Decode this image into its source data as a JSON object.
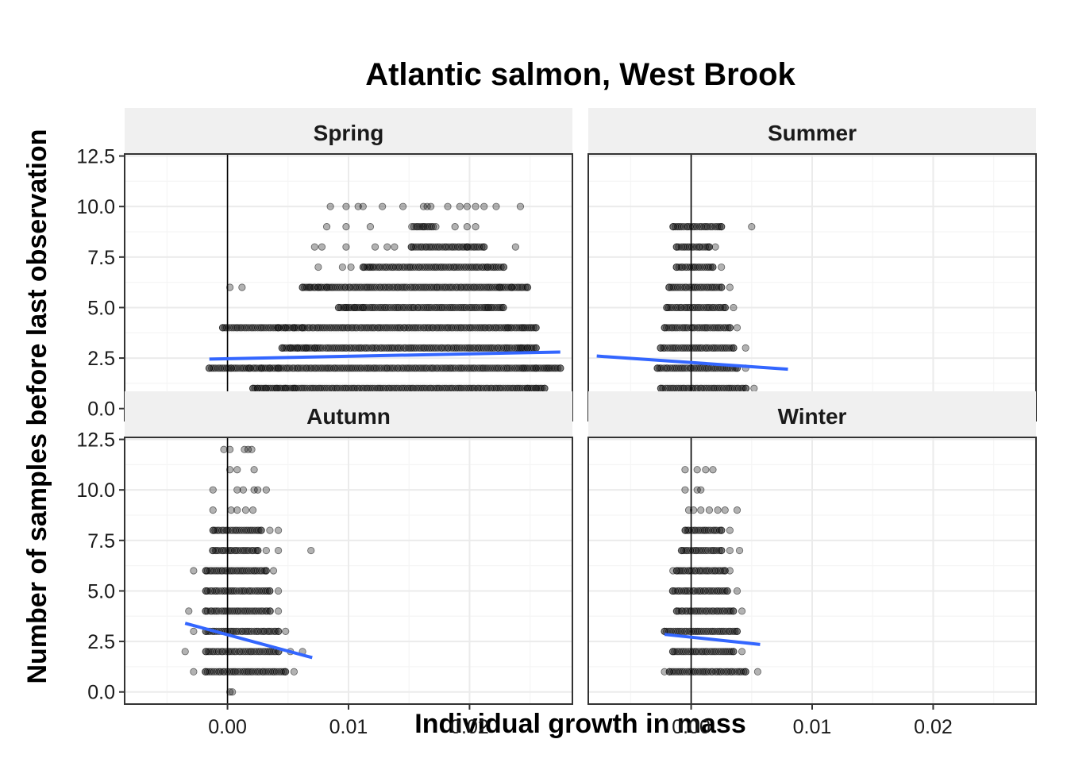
{
  "chart_data": {
    "type": "scatter",
    "title": "Atlantic salmon, West Brook",
    "xlabel": "Individual growth in mass",
    "ylabel": "Number of samples before last observation",
    "xlim": [
      -0.0085,
      0.0285
    ],
    "ylim": [
      -0.6,
      12.6
    ],
    "x_ticks": [
      0.0,
      0.01,
      0.02
    ],
    "x_tick_labels": [
      "0.00",
      "0.01",
      "0.02"
    ],
    "y_ticks": [
      0,
      2.5,
      5,
      7.5,
      10,
      12.5
    ],
    "y_tick_labels": [
      "0.0",
      "2.5",
      "5.0",
      "7.5",
      "10.0",
      "12.5"
    ],
    "vline_x": 0,
    "grid": true,
    "point_color": "#000000",
    "point_alpha": 0.3,
    "trend_color": "#3366FF",
    "facets": [
      {
        "name": "Spring",
        "rows": [
          {
            "y": 0,
            "x": [
              0.0002
            ]
          },
          {
            "y": 1,
            "min": 0.0021,
            "max": 0.0262,
            "x": [
              0.0021,
              0.0025,
              0.0032,
              0.0041,
              0.0048,
              0.0055,
              0.0248,
              0.0255,
              0.0262
            ]
          },
          {
            "y": 2,
            "min": -0.0015,
            "max": 0.0275,
            "x": [
              -0.0015,
              0.0003,
              0.0018,
              0.0028,
              0.0035,
              0.0042,
              0.0245,
              0.0255,
              0.0265,
              0.0275
            ]
          },
          {
            "y": 3,
            "min": 0.0045,
            "max": 0.0255,
            "x": [
              0.0045,
              0.0052,
              0.0058,
              0.0065,
              0.0072,
              0.0242,
              0.0248,
              0.0255
            ]
          },
          {
            "y": 4,
            "min": -0.0004,
            "max": 0.0255,
            "x": [
              -0.0004,
              0.0042,
              0.0048,
              0.0055,
              0.0062,
              0.0232,
              0.0245,
              0.0255
            ]
          },
          {
            "y": 5,
            "min": 0.0092,
            "max": 0.0228,
            "x": [
              0.0092,
              0.0098,
              0.0105,
              0.0112,
              0.0215,
              0.0228
            ]
          },
          {
            "y": 6,
            "min": 0.0062,
            "max": 0.0248,
            "x": [
              0.0002,
              0.0012,
              0.0062,
              0.0068,
              0.0075,
              0.0082,
              0.0225,
              0.0235,
              0.0248
            ]
          },
          {
            "y": 7,
            "min": 0.0112,
            "max": 0.0228,
            "x": [
              0.0075,
              0.0095,
              0.0102,
              0.0112,
              0.0118,
              0.0215,
              0.0228
            ]
          },
          {
            "y": 8,
            "min": 0.0152,
            "max": 0.0212,
            "x": [
              0.0072,
              0.0078,
              0.0098,
              0.0122,
              0.0132,
              0.0138,
              0.0152,
              0.0198,
              0.0212,
              0.0238
            ]
          },
          {
            "y": 9,
            "min": 0.0152,
            "max": 0.0172,
            "x": [
              0.0082,
              0.0098,
              0.0118,
              0.0162,
              0.0188,
              0.0198,
              0.0205
            ]
          },
          {
            "y": 10,
            "x": [
              0.0085,
              0.0098,
              0.0108,
              0.0112,
              0.0128,
              0.0145,
              0.0162,
              0.0165,
              0.0168,
              0.0182,
              0.0192,
              0.0198,
              0.0205,
              0.0212,
              0.0222,
              0.0242
            ]
          }
        ],
        "trend": {
          "x": [
            -0.0015,
            0.0275
          ],
          "y": [
            2.45,
            2.8
          ]
        }
      },
      {
        "name": "Summer",
        "rows": [
          {
            "y": 0,
            "min": -0.003,
            "max": 0.0048,
            "x": [
              -0.0078,
              -0.0052,
              -0.003,
              -0.0025,
              0.0035,
              0.0042,
              0.0048,
              0.0058,
              0.0082
            ]
          },
          {
            "y": 1,
            "min": -0.0025,
            "max": 0.0045,
            "x": [
              -0.0025,
              0.0045,
              0.0052
            ]
          },
          {
            "y": 2,
            "min": -0.0028,
            "max": 0.0038,
            "x": [
              -0.0028,
              0.0038,
              0.0045
            ]
          },
          {
            "y": 3,
            "min": -0.0025,
            "max": 0.0035,
            "x": [
              -0.0025,
              0.0035,
              0.0045
            ]
          },
          {
            "y": 4,
            "min": -0.0022,
            "max": 0.0032,
            "x": [
              -0.0022,
              0.0032,
              0.0038
            ]
          },
          {
            "y": 5,
            "min": -0.002,
            "max": 0.0028,
            "x": [
              -0.002,
              0.0028,
              0.0035
            ]
          },
          {
            "y": 6,
            "min": -0.0018,
            "max": 0.0025,
            "x": [
              -0.0018,
              0.0025,
              0.0032
            ]
          },
          {
            "y": 7,
            "min": -0.0012,
            "max": 0.0018,
            "x": [
              -0.0012,
              0.0018,
              0.0025
            ]
          },
          {
            "y": 8,
            "min": -0.0012,
            "max": 0.0015,
            "x": [
              -0.0012,
              0.0015,
              0.002
            ]
          },
          {
            "y": 9,
            "min": -0.0015,
            "max": 0.0025,
            "x": [
              -0.0015,
              0.0025,
              0.005
            ]
          }
        ],
        "trend": {
          "x": [
            -0.0078,
            0.008
          ],
          "y": [
            2.6,
            1.95
          ]
        }
      },
      {
        "name": "Autumn",
        "rows": [
          {
            "y": 0,
            "x": [
              0.0002,
              0.0004
            ]
          },
          {
            "y": 1,
            "min": -0.0018,
            "max": 0.0048,
            "x": [
              -0.0028,
              -0.0018,
              0.0048,
              0.0055
            ]
          },
          {
            "y": 2,
            "min": -0.0018,
            "max": 0.0042,
            "x": [
              -0.0035,
              -0.0018,
              0.0042,
              0.0052,
              0.0062
            ]
          },
          {
            "y": 3,
            "min": -0.0018,
            "max": 0.0042,
            "x": [
              -0.0028,
              -0.0018,
              0.0042,
              0.0048
            ]
          },
          {
            "y": 4,
            "min": -0.0018,
            "max": 0.0035,
            "x": [
              -0.0032,
              -0.0018,
              0.0035,
              0.0042
            ]
          },
          {
            "y": 5,
            "min": -0.0018,
            "max": 0.0035,
            "x": [
              -0.0018,
              0.0035,
              0.0042
            ]
          },
          {
            "y": 6,
            "min": -0.0018,
            "max": 0.0032,
            "x": [
              -0.0028,
              -0.0018,
              0.0032,
              0.0038
            ]
          },
          {
            "y": 7,
            "min": -0.0012,
            "max": 0.0025,
            "x": [
              -0.0012,
              0.0025,
              0.0032,
              0.0042,
              0.0069
            ]
          },
          {
            "y": 8,
            "min": -0.0012,
            "max": 0.0028,
            "x": [
              -0.0012,
              0.0028,
              0.0035,
              0.0042
            ]
          },
          {
            "y": 9,
            "x": [
              -0.0012,
              0.0003,
              0.0008,
              0.0015,
              0.0021
            ]
          },
          {
            "y": 10,
            "x": [
              -0.0012,
              0.0008,
              0.0013,
              0.0022,
              0.0025,
              0.0032
            ]
          },
          {
            "y": 11,
            "x": [
              0.0002,
              0.0008,
              0.0022
            ]
          },
          {
            "y": 12,
            "x": [
              -0.0003,
              0.0002,
              0.0014,
              0.0017,
              0.002
            ]
          }
        ],
        "trend": {
          "x": [
            -0.0035,
            0.007
          ],
          "y": [
            3.4,
            1.7
          ]
        }
      },
      {
        "name": "Winter",
        "rows": [
          {
            "y": 1,
            "min": -0.0018,
            "max": 0.0045,
            "x": [
              -0.0022,
              -0.0018,
              0.0045,
              0.0055
            ]
          },
          {
            "y": 2,
            "min": -0.0015,
            "max": 0.0035,
            "x": [
              -0.0015,
              0.0035,
              0.0042
            ]
          },
          {
            "y": 3,
            "min": -0.0022,
            "max": 0.0038,
            "x": [
              -0.0022,
              0.0038
            ]
          },
          {
            "y": 4,
            "min": -0.0012,
            "max": 0.0035,
            "x": [
              -0.0012,
              0.0035,
              0.0042
            ]
          },
          {
            "y": 5,
            "min": -0.0015,
            "max": 0.003,
            "x": [
              -0.0015,
              0.003,
              0.0038
            ]
          },
          {
            "y": 6,
            "min": -0.0012,
            "max": 0.0028,
            "x": [
              -0.0015,
              -0.0012,
              0.0028,
              0.0032
            ]
          },
          {
            "y": 7,
            "min": -0.0008,
            "max": 0.0025,
            "x": [
              -0.0008,
              0.0025,
              0.0032,
              0.004
            ]
          },
          {
            "y": 8,
            "min": -0.0005,
            "max": 0.0025,
            "x": [
              -0.0005,
              0.0025,
              0.0032
            ]
          },
          {
            "y": 9,
            "x": [
              -0.0002,
              0.0002,
              0.0008,
              0.0015,
              0.0022,
              0.0028,
              0.0038
            ]
          },
          {
            "y": 10,
            "x": [
              -0.0005,
              0.0005,
              0.0008
            ]
          },
          {
            "y": 11,
            "x": [
              -0.0005,
              0.0005,
              0.0012,
              0.0018
            ]
          }
        ],
        "trend": {
          "x": [
            -0.0022,
            0.0057
          ],
          "y": [
            2.85,
            2.35
          ]
        }
      }
    ]
  }
}
